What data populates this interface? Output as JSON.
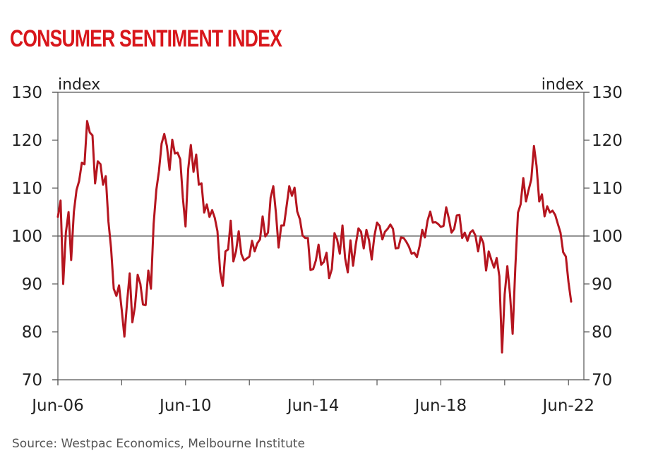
{
  "title": "CONSUMER SENTIMENT INDEX",
  "source": "Source: Westpac Economics, Melbourne Institute",
  "colors": {
    "title": "#d8161b",
    "line": "#b5151f",
    "axis": "#555555",
    "text": "#222222"
  },
  "chart_data": {
    "type": "line",
    "title": "CONSUMER SENTIMENT INDEX",
    "xlabel": "",
    "ylabel_left": "index",
    "ylabel_right": "index",
    "ylim": [
      70,
      130
    ],
    "yticks": [
      70,
      80,
      90,
      100,
      110,
      120,
      130
    ],
    "ytick_labels": [
      "70",
      "80",
      "90",
      "100",
      "110",
      "120",
      "130"
    ],
    "reference_line": 100,
    "x_start": "Jun-06",
    "x_end": "Jun-22",
    "x_frequency": "monthly",
    "xtick_labels": [
      "Jun-06",
      "Jun-10",
      "Jun-14",
      "Jun-18",
      "Jun-22"
    ],
    "xtick_minor_labels": [
      "Jun-08",
      "Jun-12",
      "Jun-16",
      "Jun-20"
    ],
    "grid": false,
    "legend": "none",
    "series": [
      {
        "name": "Consumer Sentiment Index",
        "values": [
          104,
          107.4,
          90,
          100.7,
          105,
          95,
          105,
          109.6,
          111.5,
          115.3,
          115,
          124,
          121.6,
          121,
          111,
          115.6,
          115,
          110.7,
          112.5,
          103,
          97.5,
          89,
          87.5,
          89.7,
          84.6,
          79,
          86,
          92.2,
          82,
          85.3,
          91.9,
          90,
          85.7,
          85.6,
          92.8,
          89,
          102.5,
          109.6,
          113.5,
          119.3,
          121.3,
          118.8,
          113.8,
          120.1,
          117.2,
          117.4,
          116,
          108,
          102,
          114,
          119,
          113.4,
          117,
          110.7,
          111,
          104.9,
          106.6,
          104,
          105.4,
          103.8,
          101,
          92.6,
          89.6,
          96.8,
          97.2,
          103.2,
          94.7,
          96.9,
          101,
          96.2,
          94.9,
          95.3,
          95.7,
          99,
          96.8,
          98.5,
          99.3,
          104.1,
          99.9,
          100.7,
          108,
          110.4,
          104.7,
          97.6,
          102.2,
          102.2,
          106.2,
          110.4,
          108.4,
          110.1,
          105.1,
          103.5,
          100.1,
          99.6,
          99.6,
          92.9,
          93.1,
          94.9,
          98.2,
          94,
          94.6,
          96.5,
          91.2,
          93.1,
          100.6,
          99.3,
          96.3,
          102.2,
          95.4,
          92.4,
          99.1,
          93.8,
          98.2,
          101.6,
          100.9,
          97.4,
          101.3,
          99.1,
          95.1,
          100,
          102.8,
          102.1,
          99.3,
          100.9,
          101.5,
          102.4,
          101.5,
          97.4,
          97.5,
          99.7,
          99.6,
          98.8,
          97.8,
          96.3,
          96.5,
          95.6,
          97.9,
          101.3,
          99.7,
          103.2,
          105.1,
          102.8,
          102.9,
          102.5,
          101.9,
          102.1,
          106,
          103.7,
          100.7,
          101.5,
          104.3,
          104.4,
          99.6,
          100.7,
          99,
          100.7,
          101.2,
          100.1,
          96.8,
          99.9,
          98.5,
          92.8,
          96.8,
          95,
          93.4,
          95.4,
          91.6,
          75.7,
          87.8,
          93.7,
          87.8,
          79.6,
          93.4,
          104.9,
          106.6,
          112.1,
          107.2,
          109.6,
          111.8,
          118.8,
          114.6,
          107.2,
          108.7,
          104.1,
          106.2,
          104.9,
          105.3,
          104.4,
          102.5,
          100.7,
          96.6,
          95.7,
          90.4,
          86.3
        ]
      }
    ]
  }
}
